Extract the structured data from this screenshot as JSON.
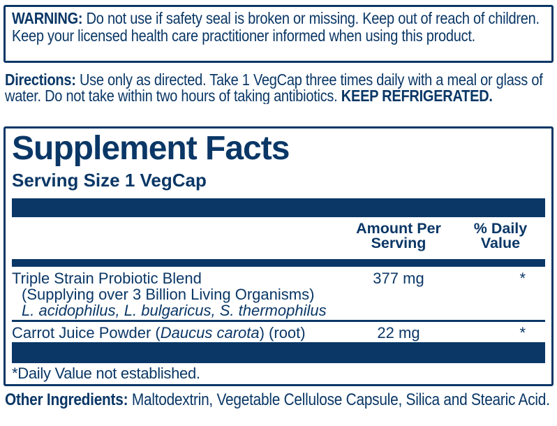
{
  "colors": {
    "navy": "#0a3766",
    "background": "#ffffff"
  },
  "warning": {
    "label": "WARNING:",
    "text": "Do not use if safety seal is broken or missing.  Keep out of reach of children. Keep your licensed health care practitioner informed when using this product."
  },
  "directions": {
    "label": "Directions:",
    "text": "Use only as directed. Take 1 VegCap three times daily with a meal or glass of water. Do not take within two hours of taking antibiotics.",
    "emphasis": "KEEP REFRIGERATED."
  },
  "supplement_facts": {
    "title": "Supplement Facts",
    "serving_size": "Serving Size 1 VegCap",
    "columns": {
      "amount_per_serving": "Amount Per Serving",
      "percent_daily_value": "% Daily Value"
    },
    "rows": [
      {
        "name": "Triple Strain Probiotic Blend",
        "detail": "(Supplying over 3 Billion Living Organisms)",
        "species": "L. acidophilus, L. bulgaricus, S. thermophilus",
        "amount": "377 mg",
        "daily_value": "*"
      },
      {
        "name_prefix": "Carrot Juice Powder (",
        "name_botanical": "Daucus carota",
        "name_suffix": ") (root)",
        "amount": "22 mg",
        "daily_value": "*"
      }
    ],
    "footnote": "*Daily Value not established."
  },
  "other_ingredients": {
    "label": "Other Ingredients:",
    "text": "Maltodextrin, Vegetable Cellulose Capsule, Silica and Stearic Acid."
  }
}
